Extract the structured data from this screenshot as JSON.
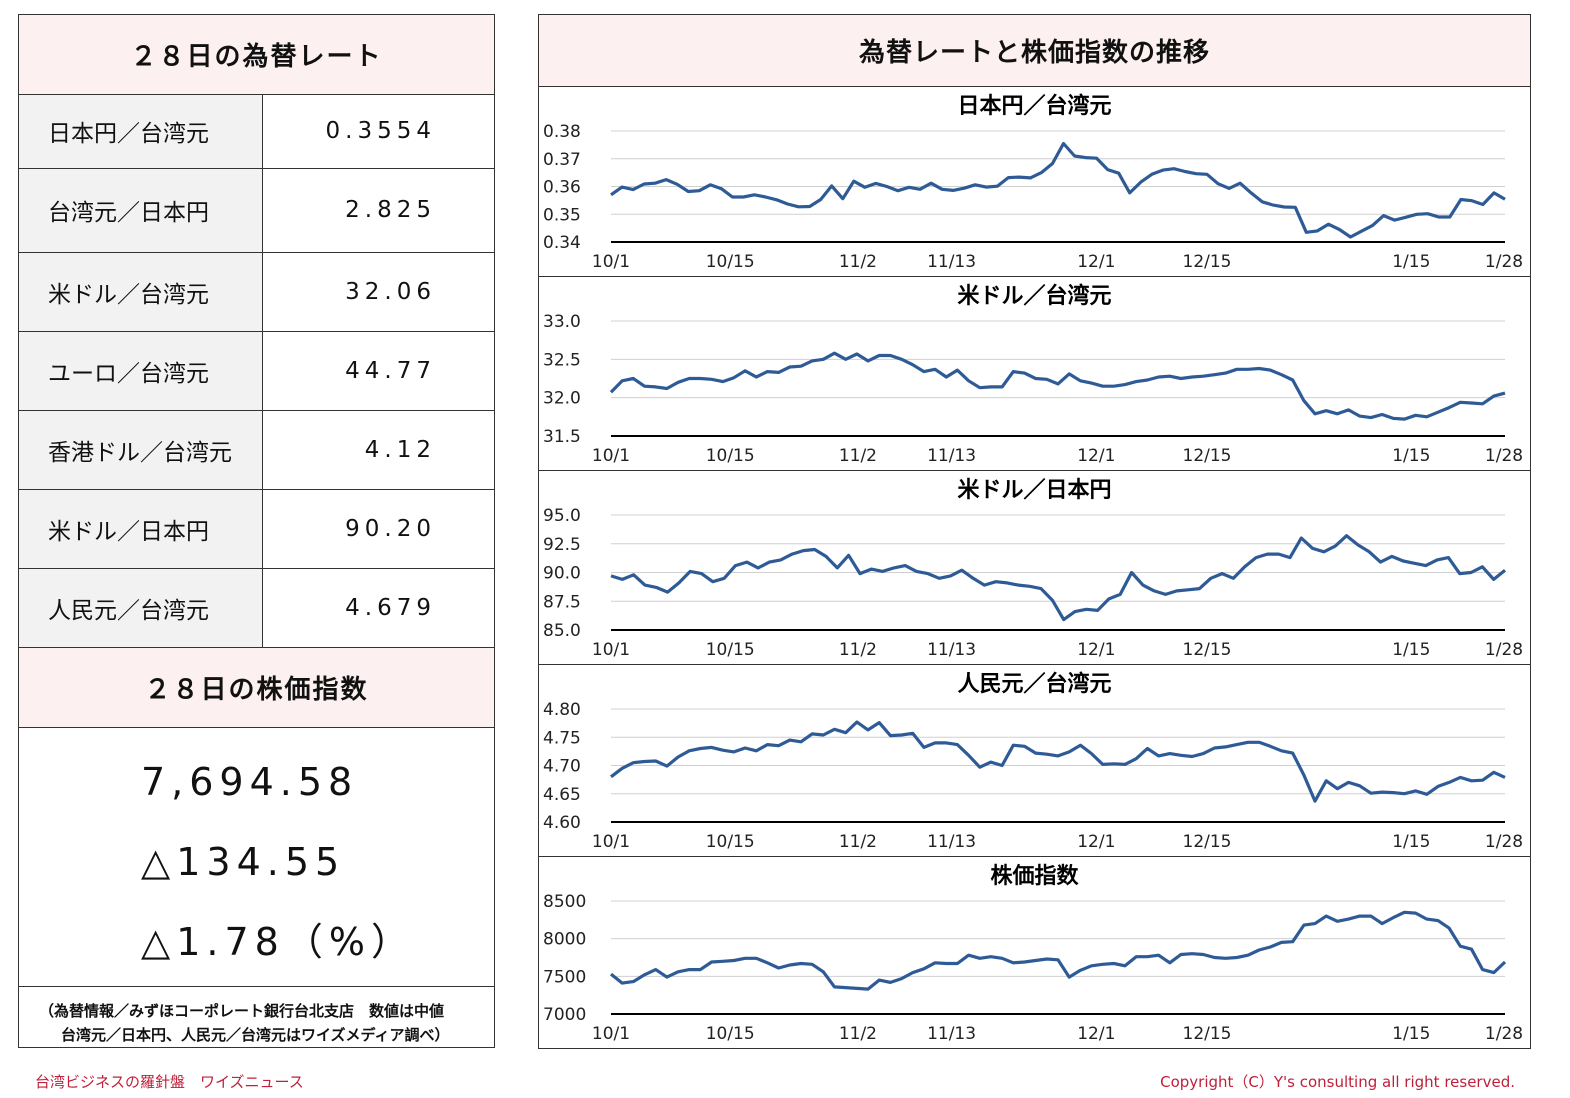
{
  "left": {
    "rate_title": "２８日の為替レート",
    "rates": [
      {
        "label": "日本円／台湾元",
        "value": "0.3554"
      },
      {
        "label": "台湾元／日本円",
        "value": "2.825"
      },
      {
        "label": "米ドル／台湾元",
        "value": "32.06"
      },
      {
        "label": "ユーロ／台湾元",
        "value": "44.77"
      },
      {
        "label": "香港ドル／台湾元",
        "value": "4.12"
      },
      {
        "label": "米ドル／日本円",
        "value": "90.20"
      },
      {
        "label": "人民元／台湾元",
        "value": "4.679"
      }
    ],
    "stock_title": "２８日の株価指数",
    "stock_value": "7,694.58",
    "stock_change": "△134.55",
    "stock_change_pct": "△1.78（%）",
    "source_line1": "（為替情報／みずほコーポレート銀行台北支店　数値は中値",
    "source_line2": "台湾元／日本円、人民元／台湾元はワイズメディア調べ）"
  },
  "right": {
    "title": "為替レートと株価指数の推移"
  },
  "footer": {
    "left": "台湾ビジネスの羅針盤　ワイズニュース",
    "right": "Copyright（C）Y's consulting all right reserved."
  },
  "colors": {
    "line": "#2e5b96",
    "header_bg": "#fdf0f0",
    "label_bg": "#f2f2f2",
    "footer": "#c0203a"
  },
  "chart_data": [
    {
      "type": "line",
      "title": "日本円／台湾元",
      "x_ticks": [
        {
          "i": 0,
          "label": "10/1"
        },
        {
          "i": 14,
          "label": "10/15"
        },
        {
          "i": 29,
          "label": "11/2"
        },
        {
          "i": 40,
          "label": "11/13"
        },
        {
          "i": 57,
          "label": "12/1"
        },
        {
          "i": 70,
          "label": "12/15"
        },
        {
          "i": 94,
          "label": "1/15"
        },
        {
          "i": 105,
          "label": "1/28"
        }
      ],
      "y_ticks": [
        "0.38",
        "0.37",
        "0.36",
        "0.35",
        "0.34"
      ],
      "ylim": [
        0.34,
        0.38
      ],
      "grid": true,
      "values": [
        0.357,
        0.3598,
        0.3589,
        0.3609,
        0.3612,
        0.3625,
        0.3608,
        0.3582,
        0.3585,
        0.3606,
        0.3592,
        0.3562,
        0.3562,
        0.357,
        0.3562,
        0.3552,
        0.3537,
        0.3527,
        0.3528,
        0.3553,
        0.3602,
        0.3556,
        0.3619,
        0.3597,
        0.3611,
        0.36,
        0.3585,
        0.3597,
        0.359,
        0.3612,
        0.359,
        0.3586,
        0.3594,
        0.3606,
        0.3598,
        0.3601,
        0.3632,
        0.3634,
        0.3631,
        0.365,
        0.3683,
        0.3755,
        0.371,
        0.3704,
        0.3702,
        0.3661,
        0.3648,
        0.3577,
        0.3616,
        0.3644,
        0.3659,
        0.3664,
        0.3654,
        0.3646,
        0.3644,
        0.361,
        0.3593,
        0.3612,
        0.3577,
        0.3545,
        0.3533,
        0.3526,
        0.3525,
        0.3435,
        0.344,
        0.3464,
        0.3445,
        0.3418,
        0.3439,
        0.346,
        0.3495,
        0.3479,
        0.3489,
        0.35,
        0.3502,
        0.349,
        0.349,
        0.3553,
        0.3549,
        0.3535,
        0.3577,
        0.3554
      ]
    },
    {
      "type": "line",
      "title": "米ドル／台湾元",
      "x_ticks": [
        {
          "i": 0,
          "label": "10/1"
        },
        {
          "i": 14,
          "label": "10/15"
        },
        {
          "i": 29,
          "label": "11/2"
        },
        {
          "i": 40,
          "label": "11/13"
        },
        {
          "i": 57,
          "label": "12/1"
        },
        {
          "i": 70,
          "label": "12/15"
        },
        {
          "i": 94,
          "label": "1/15"
        },
        {
          "i": 105,
          "label": "1/28"
        }
      ],
      "y_ticks": [
        "33.0",
        "32.5",
        "32.0",
        "31.5"
      ],
      "ylim": [
        31.5,
        33.0
      ],
      "grid": true,
      "values": [
        32.07,
        32.22,
        32.25,
        32.15,
        32.14,
        32.12,
        32.2,
        32.25,
        32.25,
        32.24,
        32.21,
        32.26,
        32.35,
        32.27,
        32.34,
        32.33,
        32.4,
        32.41,
        32.48,
        32.5,
        32.58,
        32.5,
        32.57,
        32.48,
        32.55,
        32.55,
        32.5,
        32.43,
        32.34,
        32.37,
        32.27,
        32.36,
        32.22,
        32.13,
        32.14,
        32.14,
        32.34,
        32.32,
        32.25,
        32.24,
        32.18,
        32.31,
        32.22,
        32.19,
        32.15,
        32.15,
        32.17,
        32.21,
        32.23,
        32.27,
        32.28,
        32.25,
        32.27,
        32.28,
        32.3,
        32.32,
        32.37,
        32.37,
        32.38,
        32.36,
        32.3,
        32.23,
        31.96,
        31.79,
        31.83,
        31.79,
        31.84,
        31.76,
        31.74,
        31.78,
        31.73,
        31.72,
        31.77,
        31.75,
        31.81,
        31.87,
        31.94,
        31.93,
        31.92,
        32.02,
        32.06
      ]
    },
    {
      "type": "line",
      "title": "米ドル／日本円",
      "x_ticks": [
        {
          "i": 0,
          "label": "10/1"
        },
        {
          "i": 14,
          "label": "10/15"
        },
        {
          "i": 29,
          "label": "11/2"
        },
        {
          "i": 40,
          "label": "11/13"
        },
        {
          "i": 57,
          "label": "12/1"
        },
        {
          "i": 70,
          "label": "12/15"
        },
        {
          "i": 94,
          "label": "1/15"
        },
        {
          "i": 105,
          "label": "1/28"
        }
      ],
      "y_ticks": [
        "95.0",
        "92.5",
        "90.0",
        "87.5",
        "85.0"
      ],
      "ylim": [
        85.0,
        95.0
      ],
      "grid": true,
      "values": [
        89.7,
        89.4,
        89.8,
        88.9,
        88.7,
        88.3,
        89.1,
        90.1,
        89.9,
        89.2,
        89.5,
        90.6,
        90.9,
        90.4,
        90.9,
        91.1,
        91.6,
        91.9,
        92.0,
        91.4,
        90.4,
        91.5,
        89.9,
        90.3,
        90.1,
        90.4,
        90.6,
        90.1,
        89.9,
        89.5,
        89.7,
        90.2,
        89.5,
        88.9,
        89.2,
        89.1,
        88.9,
        88.8,
        88.6,
        87.6,
        85.9,
        86.6,
        86.8,
        86.7,
        87.7,
        88.1,
        90.0,
        88.9,
        88.4,
        88.1,
        88.4,
        88.5,
        88.6,
        89.5,
        89.9,
        89.5,
        90.5,
        91.3,
        91.6,
        91.6,
        91.3,
        93.0,
        92.1,
        91.8,
        92.3,
        93.2,
        92.4,
        91.8,
        90.9,
        91.4,
        91.0,
        90.8,
        90.6,
        91.1,
        91.3,
        89.9,
        90.0,
        90.5,
        89.4,
        90.2
      ]
    },
    {
      "type": "line",
      "title": "人民元／台湾元",
      "x_ticks": [
        {
          "i": 0,
          "label": "10/1"
        },
        {
          "i": 14,
          "label": "10/15"
        },
        {
          "i": 29,
          "label": "11/2"
        },
        {
          "i": 40,
          "label": "11/13"
        },
        {
          "i": 57,
          "label": "12/1"
        },
        {
          "i": 70,
          "label": "12/15"
        },
        {
          "i": 94,
          "label": "1/15"
        },
        {
          "i": 105,
          "label": "1/28"
        }
      ],
      "y_ticks": [
        "4.80",
        "4.75",
        "4.70",
        "4.65",
        "4.60"
      ],
      "ylim": [
        4.6,
        4.8
      ],
      "grid": true,
      "values": [
        4.68,
        4.695,
        4.705,
        4.707,
        4.708,
        4.699,
        4.715,
        4.726,
        4.73,
        4.732,
        4.727,
        4.724,
        4.731,
        4.726,
        4.737,
        4.735,
        4.745,
        4.742,
        4.756,
        4.754,
        4.764,
        4.758,
        4.777,
        4.763,
        4.776,
        4.753,
        4.754,
        4.757,
        4.732,
        4.74,
        4.74,
        4.737,
        4.718,
        4.697,
        4.706,
        4.7,
        4.736,
        4.734,
        4.722,
        4.72,
        4.717,
        4.724,
        4.736,
        4.721,
        4.702,
        4.703,
        4.702,
        4.712,
        4.73,
        4.717,
        4.721,
        4.718,
        4.716,
        4.721,
        4.731,
        4.733,
        4.737,
        4.741,
        4.741,
        4.734,
        4.726,
        4.722,
        4.683,
        4.637,
        4.673,
        4.659,
        4.67,
        4.664,
        4.651,
        4.653,
        4.652,
        4.65,
        4.655,
        4.649,
        4.663,
        4.67,
        4.679,
        4.673,
        4.674,
        4.688,
        4.679
      ]
    },
    {
      "type": "line",
      "title": "株価指数",
      "x_ticks": [
        {
          "i": 0,
          "label": "10/1"
        },
        {
          "i": 14,
          "label": "10/15"
        },
        {
          "i": 29,
          "label": "11/2"
        },
        {
          "i": 40,
          "label": "11/13"
        },
        {
          "i": 57,
          "label": "12/1"
        },
        {
          "i": 70,
          "label": "12/15"
        },
        {
          "i": 94,
          "label": "1/15"
        },
        {
          "i": 105,
          "label": "1/28"
        }
      ],
      "y_ticks": [
        "8500",
        "8000",
        "7500",
        "7000"
      ],
      "ylim": [
        7000,
        8500
      ],
      "grid": true,
      "values": [
        7530,
        7410,
        7430,
        7520,
        7590,
        7490,
        7560,
        7590,
        7590,
        7690,
        7700,
        7710,
        7740,
        7740,
        7680,
        7610,
        7650,
        7670,
        7660,
        7560,
        7360,
        7350,
        7340,
        7330,
        7450,
        7420,
        7470,
        7550,
        7600,
        7680,
        7670,
        7670,
        7780,
        7740,
        7760,
        7740,
        7680,
        7690,
        7710,
        7730,
        7720,
        7490,
        7580,
        7640,
        7660,
        7670,
        7640,
        7760,
        7760,
        7780,
        7680,
        7790,
        7800,
        7790,
        7750,
        7740,
        7750,
        7780,
        7850,
        7890,
        7950,
        7960,
        8180,
        8200,
        8300,
        8230,
        8260,
        8300,
        8300,
        8200,
        8280,
        8350,
        8340,
        8260,
        8240,
        8140,
        7900,
        7860,
        7590,
        7550,
        7690
      ]
    }
  ]
}
